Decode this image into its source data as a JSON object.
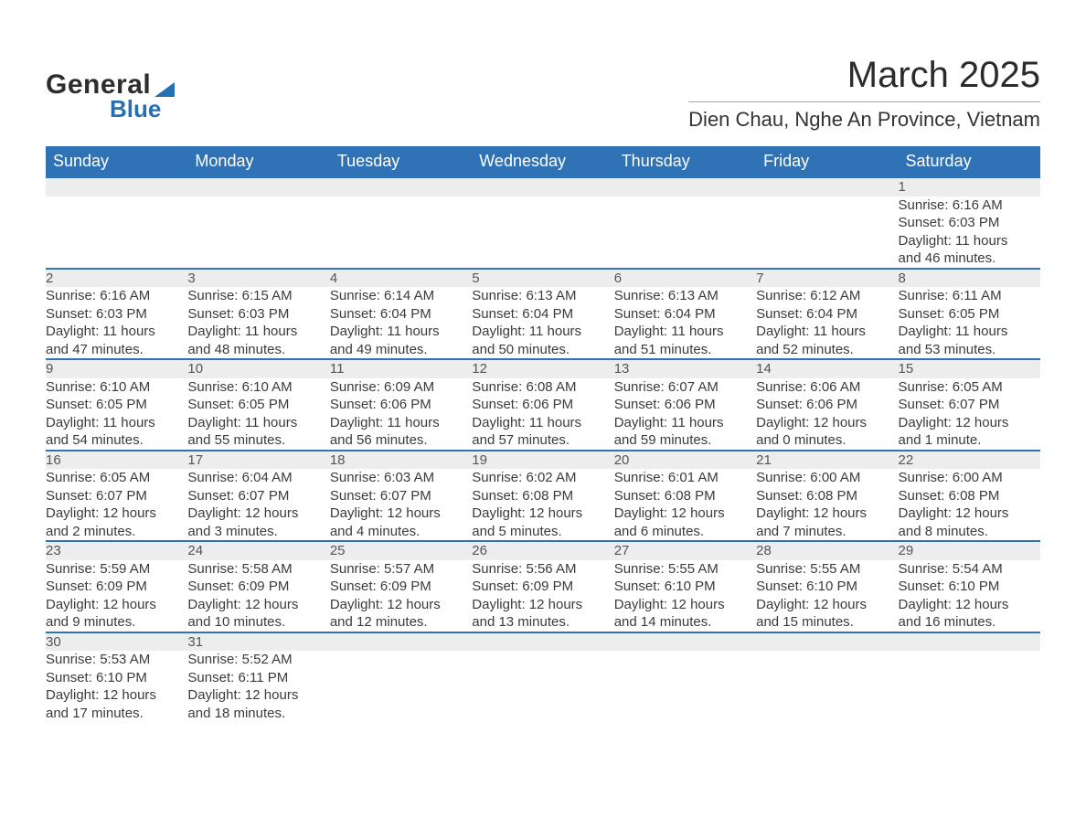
{
  "logo": {
    "line1": "General",
    "line2": "Blue"
  },
  "title": "March 2025",
  "subtitle": "Dien Chau, Nghe An Province, Vietnam",
  "colors": {
    "header_bg": "#2f72b5",
    "header_text": "#ffffff",
    "daynum_bg": "#ededed",
    "row_border": "#2f72b5",
    "text": "#3b3b3b",
    "logo_dark": "#2d2d2d",
    "logo_blue": "#2470b3",
    "page_bg": "#ffffff"
  },
  "weekdays": [
    "Sunday",
    "Monday",
    "Tuesday",
    "Wednesday",
    "Thursday",
    "Friday",
    "Saturday"
  ],
  "weeks": [
    [
      null,
      null,
      null,
      null,
      null,
      null,
      {
        "day": "1",
        "sunrise": "Sunrise: 6:16 AM",
        "sunset": "Sunset: 6:03 PM",
        "day1": "Daylight: 11 hours",
        "day2": "and 46 minutes."
      }
    ],
    [
      {
        "day": "2",
        "sunrise": "Sunrise: 6:16 AM",
        "sunset": "Sunset: 6:03 PM",
        "day1": "Daylight: 11 hours",
        "day2": "and 47 minutes."
      },
      {
        "day": "3",
        "sunrise": "Sunrise: 6:15 AM",
        "sunset": "Sunset: 6:03 PM",
        "day1": "Daylight: 11 hours",
        "day2": "and 48 minutes."
      },
      {
        "day": "4",
        "sunrise": "Sunrise: 6:14 AM",
        "sunset": "Sunset: 6:04 PM",
        "day1": "Daylight: 11 hours",
        "day2": "and 49 minutes."
      },
      {
        "day": "5",
        "sunrise": "Sunrise: 6:13 AM",
        "sunset": "Sunset: 6:04 PM",
        "day1": "Daylight: 11 hours",
        "day2": "and 50 minutes."
      },
      {
        "day": "6",
        "sunrise": "Sunrise: 6:13 AM",
        "sunset": "Sunset: 6:04 PM",
        "day1": "Daylight: 11 hours",
        "day2": "and 51 minutes."
      },
      {
        "day": "7",
        "sunrise": "Sunrise: 6:12 AM",
        "sunset": "Sunset: 6:04 PM",
        "day1": "Daylight: 11 hours",
        "day2": "and 52 minutes."
      },
      {
        "day": "8",
        "sunrise": "Sunrise: 6:11 AM",
        "sunset": "Sunset: 6:05 PM",
        "day1": "Daylight: 11 hours",
        "day2": "and 53 minutes."
      }
    ],
    [
      {
        "day": "9",
        "sunrise": "Sunrise: 6:10 AM",
        "sunset": "Sunset: 6:05 PM",
        "day1": "Daylight: 11 hours",
        "day2": "and 54 minutes."
      },
      {
        "day": "10",
        "sunrise": "Sunrise: 6:10 AM",
        "sunset": "Sunset: 6:05 PM",
        "day1": "Daylight: 11 hours",
        "day2": "and 55 minutes."
      },
      {
        "day": "11",
        "sunrise": "Sunrise: 6:09 AM",
        "sunset": "Sunset: 6:06 PM",
        "day1": "Daylight: 11 hours",
        "day2": "and 56 minutes."
      },
      {
        "day": "12",
        "sunrise": "Sunrise: 6:08 AM",
        "sunset": "Sunset: 6:06 PM",
        "day1": "Daylight: 11 hours",
        "day2": "and 57 minutes."
      },
      {
        "day": "13",
        "sunrise": "Sunrise: 6:07 AM",
        "sunset": "Sunset: 6:06 PM",
        "day1": "Daylight: 11 hours",
        "day2": "and 59 minutes."
      },
      {
        "day": "14",
        "sunrise": "Sunrise: 6:06 AM",
        "sunset": "Sunset: 6:06 PM",
        "day1": "Daylight: 12 hours",
        "day2": "and 0 minutes."
      },
      {
        "day": "15",
        "sunrise": "Sunrise: 6:05 AM",
        "sunset": "Sunset: 6:07 PM",
        "day1": "Daylight: 12 hours",
        "day2": "and 1 minute."
      }
    ],
    [
      {
        "day": "16",
        "sunrise": "Sunrise: 6:05 AM",
        "sunset": "Sunset: 6:07 PM",
        "day1": "Daylight: 12 hours",
        "day2": "and 2 minutes."
      },
      {
        "day": "17",
        "sunrise": "Sunrise: 6:04 AM",
        "sunset": "Sunset: 6:07 PM",
        "day1": "Daylight: 12 hours",
        "day2": "and 3 minutes."
      },
      {
        "day": "18",
        "sunrise": "Sunrise: 6:03 AM",
        "sunset": "Sunset: 6:07 PM",
        "day1": "Daylight: 12 hours",
        "day2": "and 4 minutes."
      },
      {
        "day": "19",
        "sunrise": "Sunrise: 6:02 AM",
        "sunset": "Sunset: 6:08 PM",
        "day1": "Daylight: 12 hours",
        "day2": "and 5 minutes."
      },
      {
        "day": "20",
        "sunrise": "Sunrise: 6:01 AM",
        "sunset": "Sunset: 6:08 PM",
        "day1": "Daylight: 12 hours",
        "day2": "and 6 minutes."
      },
      {
        "day": "21",
        "sunrise": "Sunrise: 6:00 AM",
        "sunset": "Sunset: 6:08 PM",
        "day1": "Daylight: 12 hours",
        "day2": "and 7 minutes."
      },
      {
        "day": "22",
        "sunrise": "Sunrise: 6:00 AM",
        "sunset": "Sunset: 6:08 PM",
        "day1": "Daylight: 12 hours",
        "day2": "and 8 minutes."
      }
    ],
    [
      {
        "day": "23",
        "sunrise": "Sunrise: 5:59 AM",
        "sunset": "Sunset: 6:09 PM",
        "day1": "Daylight: 12 hours",
        "day2": "and 9 minutes."
      },
      {
        "day": "24",
        "sunrise": "Sunrise: 5:58 AM",
        "sunset": "Sunset: 6:09 PM",
        "day1": "Daylight: 12 hours",
        "day2": "and 10 minutes."
      },
      {
        "day": "25",
        "sunrise": "Sunrise: 5:57 AM",
        "sunset": "Sunset: 6:09 PM",
        "day1": "Daylight: 12 hours",
        "day2": "and 12 minutes."
      },
      {
        "day": "26",
        "sunrise": "Sunrise: 5:56 AM",
        "sunset": "Sunset: 6:09 PM",
        "day1": "Daylight: 12 hours",
        "day2": "and 13 minutes."
      },
      {
        "day": "27",
        "sunrise": "Sunrise: 5:55 AM",
        "sunset": "Sunset: 6:10 PM",
        "day1": "Daylight: 12 hours",
        "day2": "and 14 minutes."
      },
      {
        "day": "28",
        "sunrise": "Sunrise: 5:55 AM",
        "sunset": "Sunset: 6:10 PM",
        "day1": "Daylight: 12 hours",
        "day2": "and 15 minutes."
      },
      {
        "day": "29",
        "sunrise": "Sunrise: 5:54 AM",
        "sunset": "Sunset: 6:10 PM",
        "day1": "Daylight: 12 hours",
        "day2": "and 16 minutes."
      }
    ],
    [
      {
        "day": "30",
        "sunrise": "Sunrise: 5:53 AM",
        "sunset": "Sunset: 6:10 PM",
        "day1": "Daylight: 12 hours",
        "day2": "and 17 minutes."
      },
      {
        "day": "31",
        "sunrise": "Sunrise: 5:52 AM",
        "sunset": "Sunset: 6:11 PM",
        "day1": "Daylight: 12 hours",
        "day2": "and 18 minutes."
      },
      null,
      null,
      null,
      null,
      null
    ]
  ]
}
